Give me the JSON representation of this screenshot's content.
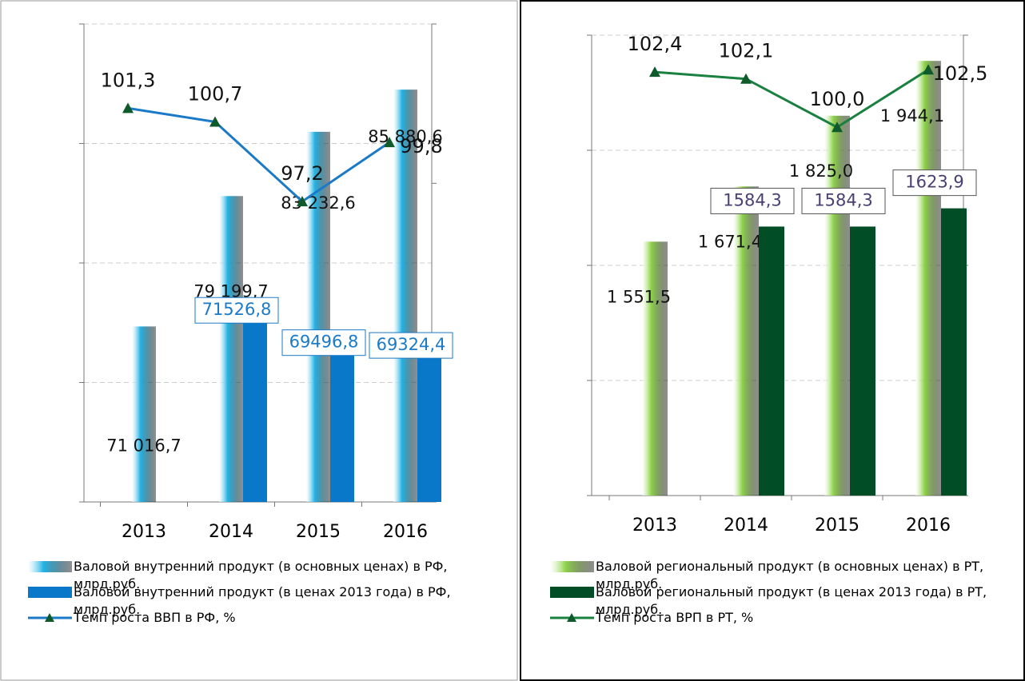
{
  "chart_data": [
    {
      "type": "bar",
      "categories": [
        "2013",
        "2014",
        "2015",
        "2016"
      ],
      "ylim": [
        60000,
        90000
      ],
      "yticks": [
        60000,
        67500,
        75000,
        82500,
        90000
      ],
      "y2lim": [
        84,
        105
      ],
      "y2ticks": [
        84,
        91,
        98,
        105
      ],
      "grid": true,
      "series": [
        {
          "name": "Валовой внутренний продукт (в основных ценах) в РФ, млрд.руб.",
          "type": "bar",
          "color": "#22b4e6",
          "values": [
            71016.7,
            79199.7,
            83232.6,
            85880.6
          ],
          "value_labels": [
            "71 016,7",
            "79 199,7",
            "83 232,6",
            "85 880,6"
          ]
        },
        {
          "name": "Валовой внутренний продукт (в ценах 2013 года) в РФ, млрд.руб.",
          "type": "bar",
          "color": "#0a78c8",
          "values": [
            null,
            71526.8,
            69496.8,
            69324.4
          ],
          "value_labels": [
            null,
            "71526,8",
            "69496,8",
            "69324,4"
          ]
        },
        {
          "name": "Темп роста ВВП в РФ, %",
          "type": "line",
          "axis": "y2",
          "color": "#1a7ac8",
          "marker_color": "#0f5a2a",
          "values": [
            101.3,
            100.7,
            97.2,
            99.8
          ],
          "value_labels": [
            "101,3",
            "100,7",
            "97,2",
            "99,8"
          ]
        }
      ]
    },
    {
      "type": "bar",
      "categories": [
        "2013",
        "2014",
        "2015",
        "2016"
      ],
      "ylim": [
        1000,
        2000
      ],
      "yticks": [
        1000,
        1250,
        1500,
        1750,
        2000
      ],
      "y2lim": [
        84,
        104
      ],
      "y2ticks": [
        84,
        94,
        104
      ],
      "grid": true,
      "series": [
        {
          "name": "Валовой региональный продукт (в основных ценах) в РТ, млрд.руб.",
          "type": "bar",
          "color": "#8fd44a",
          "values": [
            1551.5,
            1671.4,
            1825.0,
            1944.1
          ],
          "value_labels": [
            "1 551,5",
            "1 671,4",
            "1 825,0",
            "1 944,1"
          ]
        },
        {
          "name": "Валовой региональный продукт (в ценах 2013 года) в РТ, млрд.руб.",
          "type": "bar",
          "color": "#004d26",
          "values": [
            null,
            1584.3,
            1584.3,
            1623.9
          ],
          "value_labels": [
            null,
            "1584,3",
            "1584,3",
            "1623,9"
          ]
        },
        {
          "name": "Темп роста ВРП в РТ, %",
          "type": "line",
          "axis": "y2",
          "color": "#1a8040",
          "marker_color": "#0f5a2a",
          "values": [
            102.4,
            102.1,
            100.0,
            102.5
          ],
          "value_labels": [
            "102,4",
            "102,1",
            "100,0",
            "102,5"
          ]
        }
      ]
    }
  ]
}
